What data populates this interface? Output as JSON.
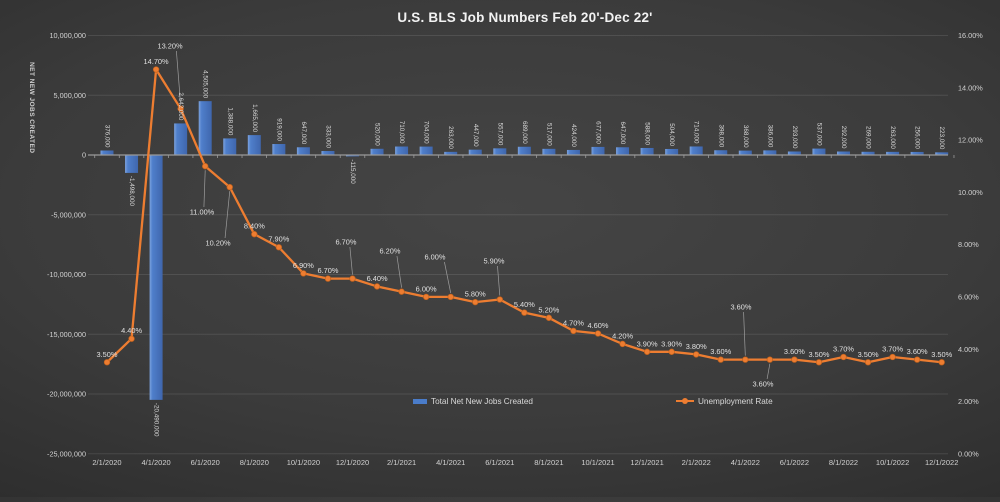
{
  "title": "U.S. BLS Job Numbers Feb 20'-Dec 22'",
  "colors": {
    "background_center": "#454545",
    "background_edge": "#161616",
    "bar_blue": "#4a7cc9",
    "bar_blue_light": "#7da3de",
    "bar_blue_dark": "#3f66ad",
    "line_orange": "#ed7d31",
    "text_light": "#d9d9d9",
    "gridline": "rgba(255,255,255,0.10)",
    "axis_line": "#9a9a9a",
    "leader_line": "#9e9e9e"
  },
  "legend": {
    "items": [
      {
        "label": "Total Net New Jobs Created",
        "type": "bar",
        "color": "#4a7cc9"
      },
      {
        "label": "Unemployment Rate",
        "type": "line",
        "color": "#ed7d31"
      }
    ],
    "position": "bottom-center"
  },
  "chart_data": {
    "type": "combo_bar_line",
    "title": "U.S. BLS Job Numbers Feb 20'-Dec 22'",
    "x": [
      "2/1/2020",
      "3/1/2020",
      "4/1/2020",
      "5/1/2020",
      "6/1/2020",
      "7/1/2020",
      "8/1/2020",
      "9/1/2020",
      "10/1/2020",
      "11/1/2020",
      "12/1/2020",
      "1/1/2021",
      "2/1/2021",
      "3/1/2021",
      "4/1/2021",
      "5/1/2021",
      "6/1/2021",
      "7/1/2021",
      "8/1/2021",
      "9/1/2021",
      "10/1/2021",
      "11/1/2021",
      "12/1/2021",
      "1/1/2022",
      "2/1/2022",
      "3/1/2022",
      "4/1/2022",
      "5/1/2022",
      "6/1/2022",
      "7/1/2022",
      "8/1/2022",
      "9/1/2022",
      "10/1/2022",
      "11/1/2022",
      "12/1/2022"
    ],
    "x_tick_labels": [
      "2/1/2020",
      "4/1/2020",
      "6/1/2020",
      "8/1/2020",
      "10/1/2020",
      "12/1/2020",
      "2/1/2021",
      "4/1/2021",
      "6/1/2021",
      "8/1/2021",
      "10/1/2021",
      "12/1/2021",
      "2/1/2022",
      "4/1/2022",
      "6/1/2022",
      "8/1/2022",
      "10/1/2022",
      "12/1/2022"
    ],
    "series": [
      {
        "name": "Total Net New Jobs Created",
        "type": "bar",
        "axis": "left",
        "values": [
          376000,
          -1498000,
          -20490000,
          2642000,
          4505000,
          1388000,
          1665000,
          919000,
          647000,
          333000,
          -115000,
          520000,
          710000,
          704000,
          263000,
          447000,
          557000,
          689000,
          517000,
          424000,
          677000,
          647000,
          588000,
          504000,
          714000,
          398000,
          368000,
          386000,
          293000,
          537000,
          292000,
          269000,
          263000,
          256000,
          223000
        ],
        "labels": [
          "376,000",
          "-1,498,000",
          "-20,490,000",
          "2,642,000",
          "4,505,000",
          "1,388,000",
          "1,665,000",
          "919,000",
          "647,000",
          "333,000",
          "-115,000",
          "520,000",
          "710,000",
          "704,000",
          "263,000",
          "447,000",
          "557,000",
          "689,000",
          "517,000",
          "424,000",
          "677,000",
          "647,000",
          "588,000",
          "504,000",
          "714,000",
          "398,000",
          "368,000",
          "386,000",
          "293,000",
          "537,000",
          "292,000",
          "269,000",
          "263,000",
          "256,000",
          "223,000"
        ]
      },
      {
        "name": "Unemployment Rate",
        "type": "line",
        "axis": "right",
        "values": [
          3.5,
          4.4,
          14.7,
          13.2,
          11.0,
          10.2,
          8.4,
          7.9,
          6.9,
          6.7,
          6.7,
          6.4,
          6.2,
          6.0,
          6.0,
          5.8,
          5.9,
          5.4,
          5.2,
          4.7,
          4.6,
          4.2,
          3.9,
          3.9,
          3.8,
          3.6,
          3.6,
          3.6,
          3.6,
          3.5,
          3.7,
          3.5,
          3.7,
          3.6,
          3.5
        ],
        "labels": [
          "3.50%",
          "4.40%",
          "14.70%",
          "13.20%",
          "11.00%",
          "10.20%",
          "8.40%",
          "7.90%",
          "6.90%",
          "6.70%",
          "6.70%",
          "6.40%",
          "6.20%",
          "6.00%",
          "6.00%",
          "5.80%",
          "5.90%",
          "5.40%",
          "5.20%",
          "4.70%",
          "4.60%",
          "4.20%",
          "3.90%",
          "3.90%",
          "3.80%",
          "3.60%",
          "3.60%",
          "3.60%",
          "3.60%",
          "3.50%",
          "3.70%",
          "3.50%",
          "3.70%",
          "3.60%",
          "3.50%"
        ]
      }
    ],
    "left_axis": {
      "title": "NET NEW JOBS CREATED",
      "min": -25000000,
      "max": 10000000,
      "tick_step": 5000000,
      "tick_labels": [
        "10,000,000",
        "5,000,000",
        "0",
        "-5,000,000",
        "-10,000,000",
        "-15,000,000",
        "-20,000,000",
        "-25,000,000"
      ]
    },
    "right_axis": {
      "min": 0,
      "max": 16,
      "tick_step": 2,
      "tick_labels": [
        "16.00%",
        "14.00%",
        "12.00%",
        "10.00%",
        "8.00%",
        "6.00%",
        "4.00%",
        "2.00%",
        "0.00%"
      ]
    },
    "grid": "horizontal",
    "legend_position": "bottom-center",
    "rate_label_overrides": {
      "3": [
        170,
        46
      ],
      "4": [
        202,
        212
      ],
      "5": [
        218,
        243
      ],
      "10": [
        346,
        242
      ],
      "12": [
        390,
        251
      ],
      "14": [
        435,
        257
      ],
      "16": [
        494,
        261
      ],
      "26": [
        741,
        307
      ],
      "27": [
        763,
        384
      ]
    }
  }
}
